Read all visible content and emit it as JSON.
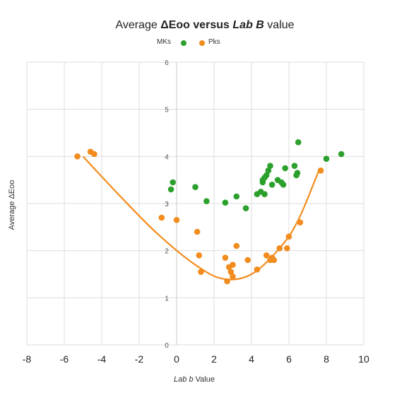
{
  "chart_data": {
    "type": "scatter",
    "title_prefix": "Average ",
    "title_delta": "ΔEoo versus ",
    "title_emph": "Lab B",
    "title_suffix": " value",
    "xlabel_prefix": "Lab b",
    "xlabel_suffix": " Value",
    "ylabel": "Average ΔEoo",
    "xlim": [
      -8,
      10
    ],
    "ylim": [
      0,
      6
    ],
    "x_ticks": [
      -8,
      -6,
      -4,
      -2,
      0,
      2,
      4,
      6,
      8,
      10
    ],
    "y_ticks": [
      0,
      1,
      2,
      3,
      4,
      5,
      6
    ],
    "grid": true,
    "legend_position": "top-center",
    "series": [
      {
        "name": "MKs",
        "color": "#2ca02c",
        "points": [
          [
            -0.3,
            3.3
          ],
          [
            -0.2,
            3.45
          ],
          [
            1.0,
            3.35
          ],
          [
            1.6,
            3.05
          ],
          [
            2.6,
            3.02
          ],
          [
            3.2,
            3.15
          ],
          [
            3.7,
            2.9
          ],
          [
            4.3,
            3.2
          ],
          [
            4.5,
            3.25
          ],
          [
            4.6,
            3.45
          ],
          [
            4.7,
            3.55
          ],
          [
            4.8,
            3.6
          ],
          [
            4.9,
            3.7
          ],
          [
            5.0,
            3.8
          ],
          [
            5.1,
            3.4
          ],
          [
            5.4,
            3.5
          ],
          [
            5.6,
            3.45
          ],
          [
            5.7,
            3.4
          ],
          [
            5.8,
            3.75
          ],
          [
            6.3,
            3.8
          ],
          [
            6.4,
            3.6
          ],
          [
            6.5,
            4.3
          ],
          [
            8.0,
            3.95
          ],
          [
            8.8,
            4.05
          ],
          [
            4.7,
            3.2
          ],
          [
            6.45,
            3.65
          ],
          [
            4.6,
            3.5
          ]
        ]
      },
      {
        "name": "Pks",
        "color": "#f28c1e",
        "points": [
          [
            -5.3,
            4.0
          ],
          [
            -4.6,
            4.1
          ],
          [
            -4.4,
            4.05
          ],
          [
            -0.8,
            2.7
          ],
          [
            0.0,
            2.65
          ],
          [
            1.1,
            2.4
          ],
          [
            1.2,
            1.9
          ],
          [
            1.3,
            1.55
          ],
          [
            2.6,
            1.85
          ],
          [
            2.7,
            1.35
          ],
          [
            2.8,
            1.65
          ],
          [
            2.9,
            1.55
          ],
          [
            3.0,
            1.7
          ],
          [
            3.0,
            1.45
          ],
          [
            3.2,
            2.1
          ],
          [
            3.8,
            1.8
          ],
          [
            4.3,
            1.6
          ],
          [
            4.8,
            1.9
          ],
          [
            5.0,
            1.8
          ],
          [
            5.1,
            1.85
          ],
          [
            5.2,
            1.8
          ],
          [
            5.5,
            2.05
          ],
          [
            5.9,
            2.05
          ],
          [
            6.0,
            2.3
          ],
          [
            6.6,
            2.6
          ],
          [
            7.7,
            3.7
          ]
        ]
      }
    ],
    "trendline": {
      "series": "Pks",
      "color": "#f28c1e",
      "x_range": [
        -5.0,
        7.65
      ],
      "x_values": [
        -5.0,
        -3.0,
        -1.0,
        1.0,
        2.5,
        4.0,
        5.5,
        6.5,
        7.65
      ],
      "y_values": [
        4.0,
        3.15,
        2.35,
        1.7,
        1.4,
        1.5,
        2.05,
        2.65,
        3.75
      ]
    }
  }
}
